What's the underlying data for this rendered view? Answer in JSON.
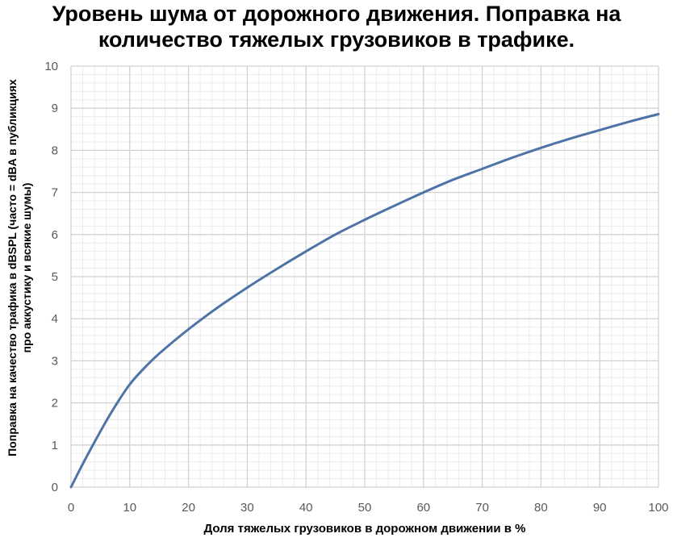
{
  "chart_data": {
    "type": "line",
    "title_lines": [
      "Уровень шума от дорожного движения. Поправка на",
      "количество тяжелых грузовиков в трафике."
    ],
    "xlabel": "Доля тяжелых грузовиков в дорожном движении в %",
    "ylabel_lines": [
      "Поправка на качество трафика в dBSPL (часто = dBA в публикциях",
      "про аккустику и всякие шумы)"
    ],
    "xlim": [
      0,
      100
    ],
    "ylim": [
      0,
      10
    ],
    "x_ticks": [
      "0",
      "10",
      "20",
      "30",
      "40",
      "50",
      "60",
      "70",
      "80",
      "90",
      "100"
    ],
    "y_ticks": [
      "0",
      "1",
      "2",
      "3",
      "4",
      "5",
      "6",
      "7",
      "8",
      "9",
      "10"
    ],
    "grid": true,
    "series_color": "#4e73a6",
    "series": [
      {
        "x": [
          0,
          2,
          4,
          6,
          8,
          10,
          12,
          15,
          20,
          25,
          30,
          35,
          40,
          45,
          50,
          55,
          60,
          65,
          70,
          75,
          80,
          85,
          90,
          95,
          100
        ],
        "values": [
          0,
          0.55,
          1.07,
          1.57,
          2.03,
          2.44,
          2.76,
          3.17,
          3.75,
          4.27,
          4.74,
          5.18,
          5.6,
          6.0,
          6.35,
          6.68,
          7.0,
          7.3,
          7.56,
          7.82,
          8.06,
          8.28,
          8.48,
          8.68,
          8.86
        ]
      }
    ]
  }
}
